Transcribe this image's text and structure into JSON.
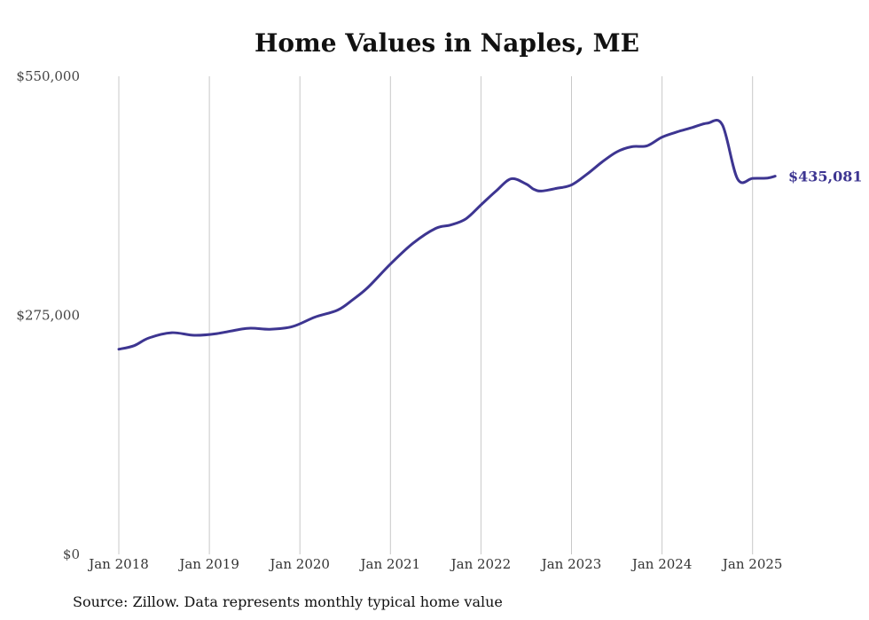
{
  "chart_data": {
    "type": "line",
    "title": "Home Values in Naples, ME",
    "xlabel": "",
    "ylabel": "",
    "ylim": [
      0,
      550000
    ],
    "yticks": [
      0,
      275000,
      550000
    ],
    "ytick_labels": [
      "$0",
      "$275,000",
      "$550,000"
    ],
    "xticks": [
      "Jan 2018",
      "Jan 2019",
      "Jan 2020",
      "Jan 2021",
      "Jan 2022",
      "Jan 2023",
      "Jan 2024",
      "Jan 2025"
    ],
    "grid": "vertical",
    "end_label": "$435,081",
    "line_color": "#3d3591",
    "source": "Source: Zillow. Data represents monthly typical home value",
    "series": [
      {
        "x": [
          "2018-01",
          "2018-03",
          "2018-05",
          "2018-08",
          "2018-11",
          "2019-02",
          "2019-06",
          "2019-09",
          "2019-12",
          "2020-03",
          "2020-06",
          "2020-08",
          "2020-10",
          "2021-01",
          "2021-04",
          "2021-07",
          "2021-09",
          "2021-11",
          "2022-01",
          "2022-03",
          "2022-05",
          "2022-07",
          "2022-08",
          "2022-09",
          "2022-11",
          "2023-01",
          "2023-03",
          "2023-05",
          "2023-07",
          "2023-09",
          "2023-11",
          "2024-01",
          "2024-03",
          "2024-05",
          "2024-07",
          "2024-09",
          "2024-11",
          "2025-01",
          "2025-03",
          "2025-04"
        ],
        "values": [
          236000,
          240000,
          249000,
          255000,
          252000,
          254000,
          260000,
          259000,
          262000,
          273000,
          281000,
          293000,
          307000,
          334000,
          358000,
          375000,
          379000,
          386000,
          402000,
          418000,
          432000,
          426000,
          420000,
          418000,
          421000,
          425000,
          437000,
          451000,
          463000,
          469000,
          470000,
          480000,
          486000,
          491000,
          496000,
          494000,
          432000,
          432500,
          433000,
          435081
        ]
      }
    ]
  }
}
